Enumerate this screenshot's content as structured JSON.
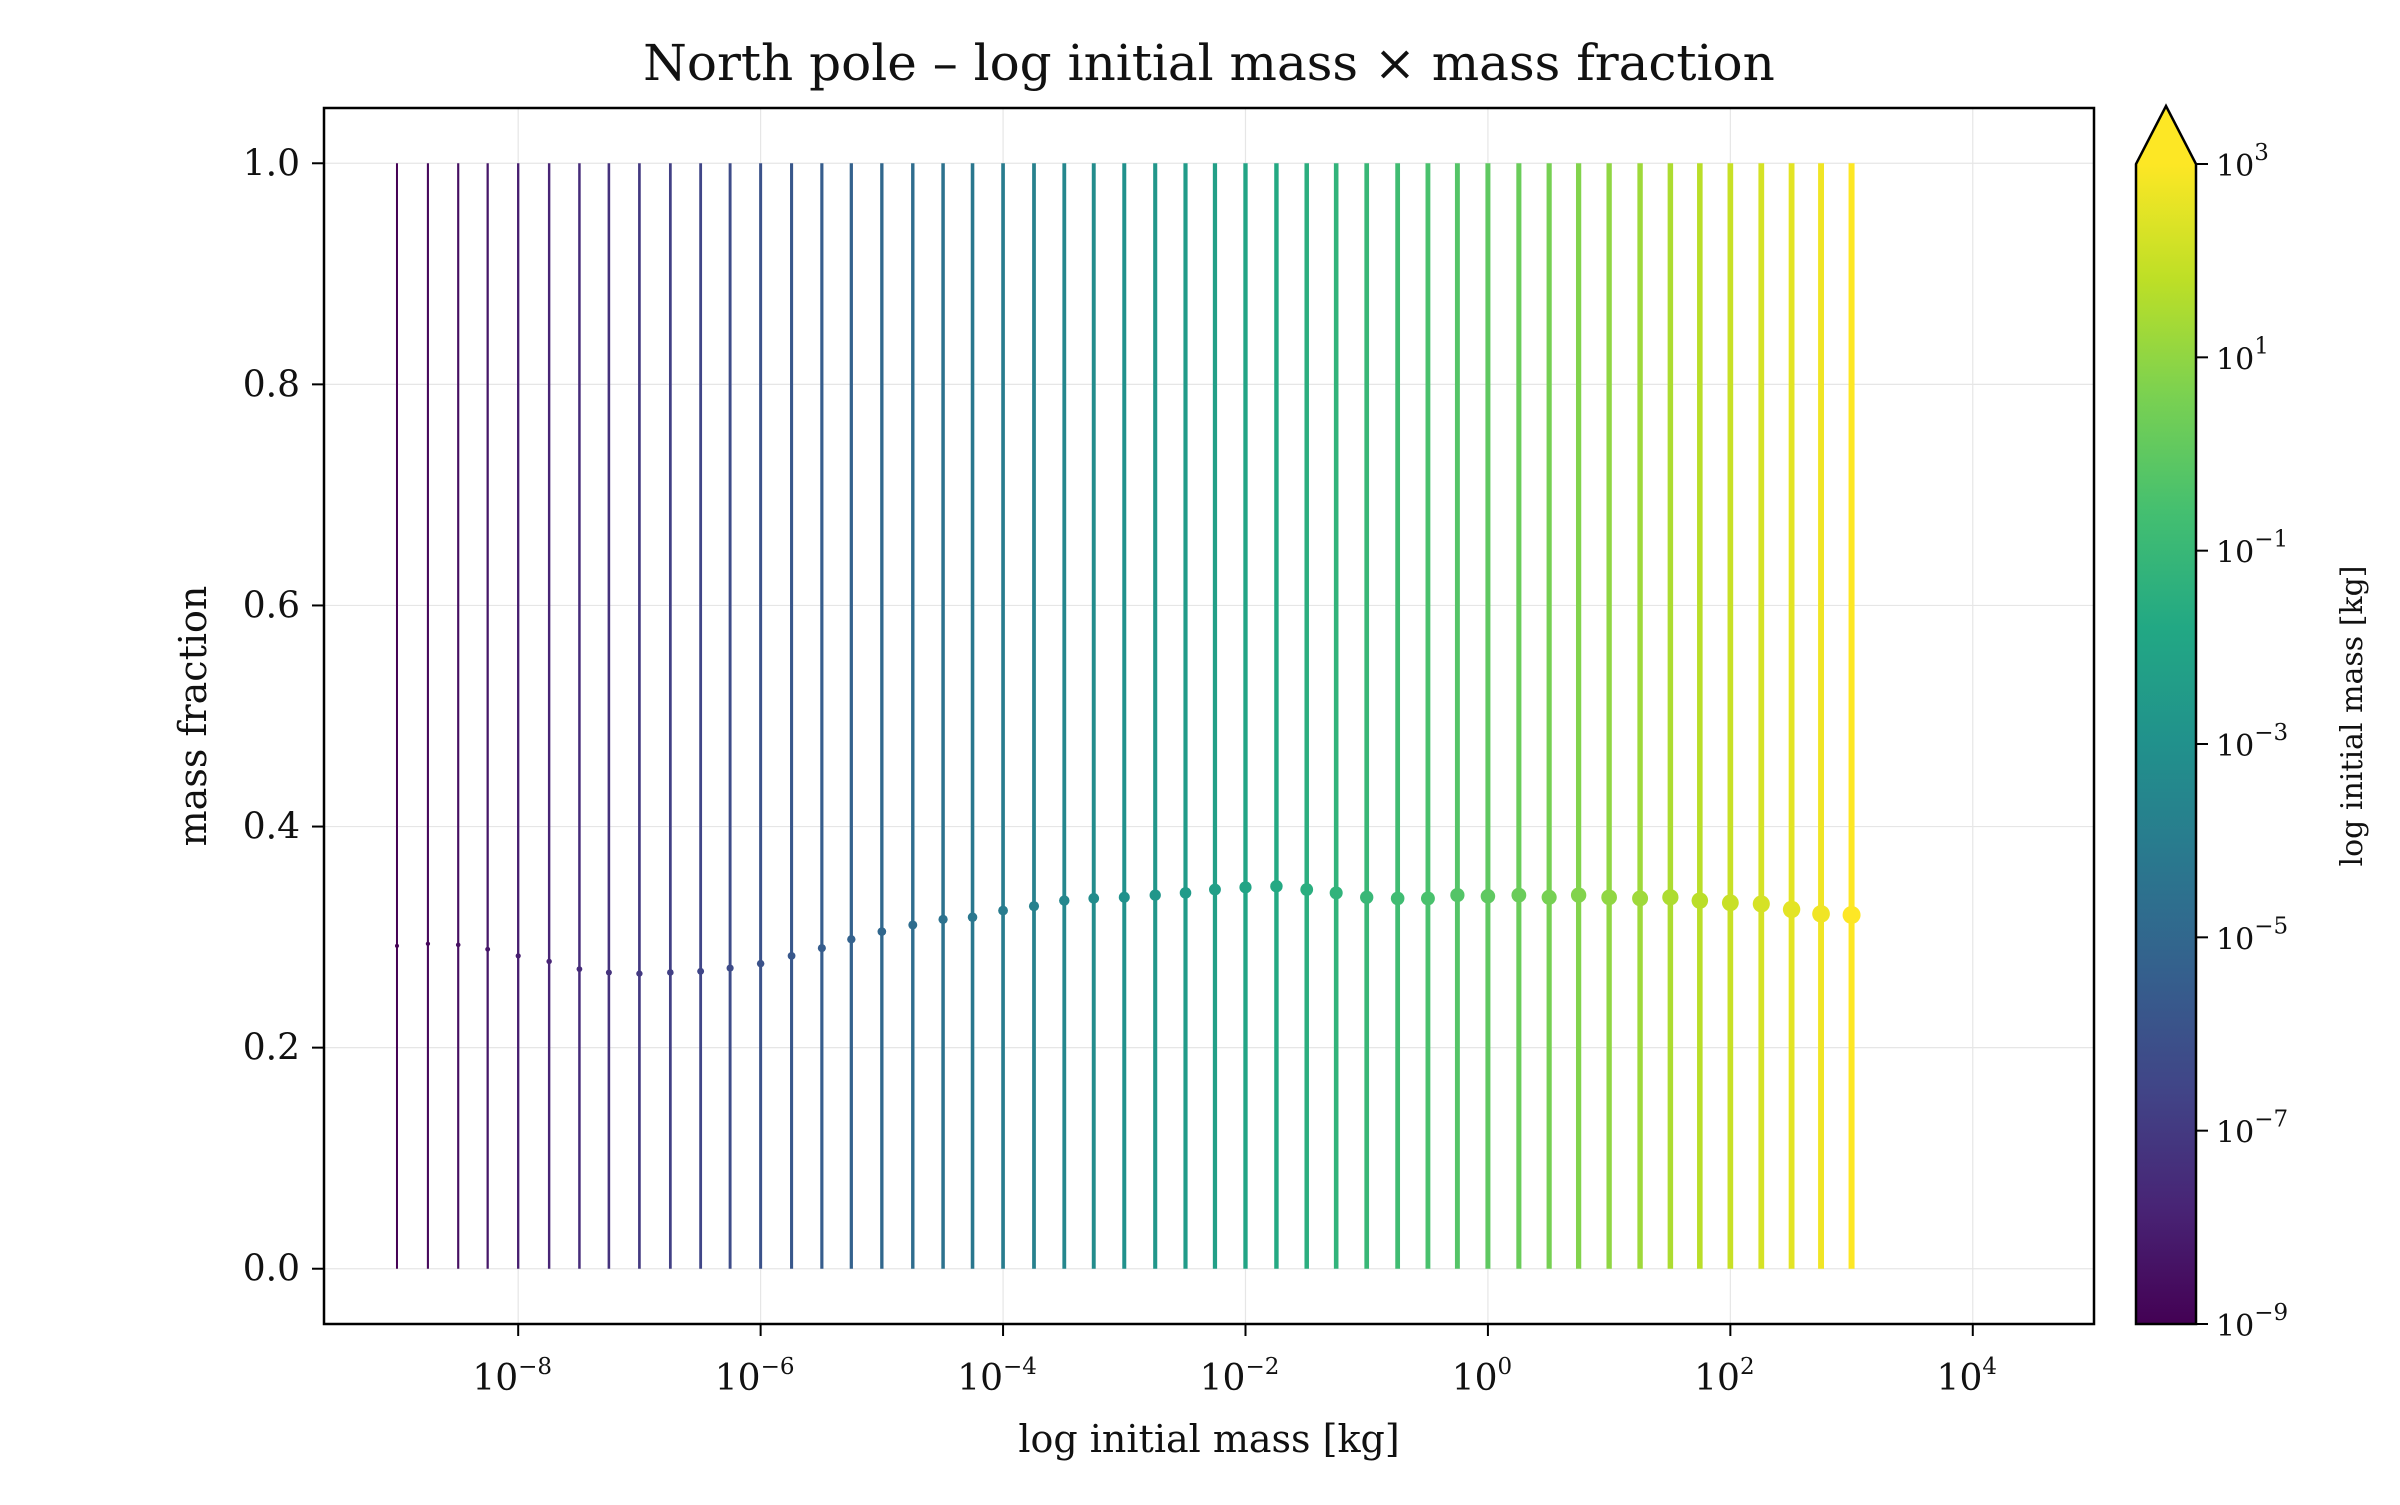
{
  "chart_data": {
    "type": "scatter",
    "title": "North pole – log initial mass × mass fraction",
    "xlabel": "log initial mass [kg]",
    "ylabel": "mass fraction",
    "xscale": "log",
    "xlim": [
      2.5e-10,
      100000.0
    ],
    "ylim": [
      -0.05,
      1.05
    ],
    "grid": true,
    "error_bars": "vertical lines spanning 0.0 to 1.0 at each point",
    "x_ticks": [
      {
        "base": "10",
        "exp": "−8",
        "value": 1e-08
      },
      {
        "base": "10",
        "exp": "−6",
        "value": 1e-06
      },
      {
        "base": "10",
        "exp": "−4",
        "value": 0.0001
      },
      {
        "base": "10",
        "exp": "−2",
        "value": 0.01
      },
      {
        "base": "10",
        "exp": "0",
        "value": 1
      },
      {
        "base": "10",
        "exp": "2",
        "value": 100
      },
      {
        "base": "10",
        "exp": "4",
        "value": 10000
      }
    ],
    "y_ticks": [
      "0.0",
      "0.2",
      "0.4",
      "0.6",
      "0.8",
      "1.0"
    ],
    "colorbar": {
      "label": "log initial mass [kg]",
      "colormap": "viridis",
      "scale": "log",
      "range": [
        1e-09,
        1000
      ],
      "extend": "max",
      "ticks": [
        {
          "base": "10",
          "exp": "−9",
          "value": 1e-09
        },
        {
          "base": "10",
          "exp": "−7",
          "value": 1e-07
        },
        {
          "base": "10",
          "exp": "−5",
          "value": 1e-05
        },
        {
          "base": "10",
          "exp": "−3",
          "value": 0.001
        },
        {
          "base": "10",
          "exp": "−1",
          "value": 0.1
        },
        {
          "base": "10",
          "exp": "1",
          "value": 10
        },
        {
          "base": "10",
          "exp": "3",
          "value": 1000
        }
      ]
    },
    "series": [
      {
        "x": [
          1e-09,
          1.8e-09,
          3.2e-09,
          5.6e-09,
          1e-08,
          1.8e-08,
          3.2e-08,
          5.6e-08,
          1e-07,
          1.8e-07,
          3.2e-07,
          5.6e-07,
          1e-06,
          1.8e-06,
          3.2e-06,
          5.6e-06,
          1e-05,
          1.8e-05,
          3.2e-05,
          5.6e-05,
          0.0001,
          0.00018,
          0.00032,
          0.00056,
          0.001,
          0.0018,
          0.0032,
          0.0056,
          0.01,
          0.018,
          0.032,
          0.056,
          0.1,
          0.18,
          0.32,
          0.56,
          1.0,
          1.8,
          3.2,
          5.6,
          10,
          18,
          32,
          56,
          100,
          180,
          320,
          560,
          1000
        ],
        "y": [
          0.292,
          0.294,
          0.293,
          0.289,
          0.283,
          0.278,
          0.271,
          0.268,
          0.267,
          0.268,
          0.269,
          0.272,
          0.276,
          0.283,
          0.29,
          0.298,
          0.305,
          0.311,
          0.316,
          0.318,
          0.324,
          0.328,
          0.333,
          0.335,
          0.336,
          0.338,
          0.34,
          0.343,
          0.345,
          0.346,
          0.343,
          0.34,
          0.336,
          0.335,
          0.335,
          0.338,
          0.337,
          0.338,
          0.336,
          0.338,
          0.336,
          0.335,
          0.336,
          0.333,
          0.331,
          0.33,
          0.325,
          0.321,
          0.32
        ],
        "y_lower": 0.0,
        "y_upper": 1.0
      }
    ]
  }
}
